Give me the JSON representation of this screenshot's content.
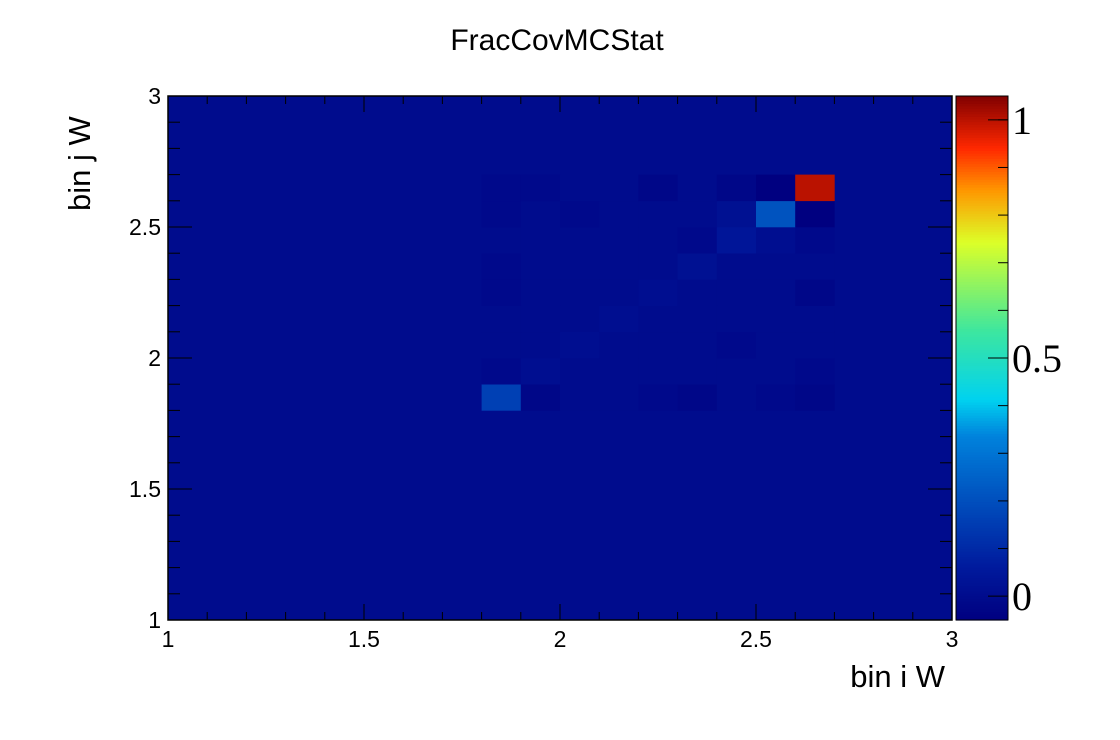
{
  "chart_data": {
    "type": "heatmap",
    "title": "FracCovMCStat",
    "xlabel": "bin i W",
    "ylabel": "bin j W",
    "xlim": [
      1,
      3
    ],
    "ylim": [
      1,
      3
    ],
    "zlim": [
      -0.05,
      1.05
    ],
    "x_ticks": [
      "1",
      "1.5",
      "2",
      "2.5",
      "3"
    ],
    "y_ticks": [
      "1",
      "1.5",
      "2",
      "2.5",
      "3"
    ],
    "z_ticks": [
      "0",
      "0.5",
      "1"
    ],
    "x_tick_values": [
      1,
      1.5,
      2,
      2.5,
      3
    ],
    "y_tick_values": [
      1,
      1.5,
      2,
      2.5,
      3
    ],
    "z_tick_values": [
      0,
      0.5,
      1
    ],
    "colormap": "jet",
    "background_value": 0.0,
    "bin_edges_x": [
      1.8,
      1.9,
      2.0,
      2.1,
      2.2,
      2.3,
      2.4,
      2.5,
      2.6,
      2.7
    ],
    "bin_edges_y": [
      1.8,
      1.9,
      2.0,
      2.1,
      2.2,
      2.3,
      2.4,
      2.5,
      2.6,
      2.7
    ],
    "z_matrix_rows_bottom_to_top": [
      [
        0.16,
        -0.02,
        0.0,
        0.0,
        -0.01,
        -0.02,
        0.0,
        -0.01,
        -0.02
      ],
      [
        -0.01,
        0.01,
        0.0,
        0.0,
        0.0,
        0.0,
        0.0,
        0.0,
        -0.01
      ],
      [
        0.0,
        0.0,
        0.01,
        0.0,
        0.0,
        0.0,
        -0.01,
        0.0,
        0.0
      ],
      [
        0.0,
        0.0,
        0.0,
        0.01,
        0.0,
        0.0,
        0.0,
        0.0,
        0.0
      ],
      [
        -0.01,
        0.0,
        0.0,
        0.0,
        0.01,
        0.0,
        0.0,
        0.0,
        -0.02
      ],
      [
        -0.01,
        0.0,
        0.0,
        0.0,
        0.0,
        0.02,
        0.0,
        0.0,
        0.0
      ],
      [
        0.0,
        0.0,
        0.0,
        0.0,
        0.0,
        -0.01,
        0.04,
        0.01,
        -0.01
      ],
      [
        -0.01,
        0.0,
        -0.01,
        0.0,
        0.0,
        0.0,
        0.02,
        0.21,
        -0.05
      ],
      [
        -0.01,
        -0.01,
        0.0,
        0.0,
        -0.02,
        0.0,
        -0.02,
        -0.05,
        1.0
      ]
    ],
    "grid": false
  }
}
